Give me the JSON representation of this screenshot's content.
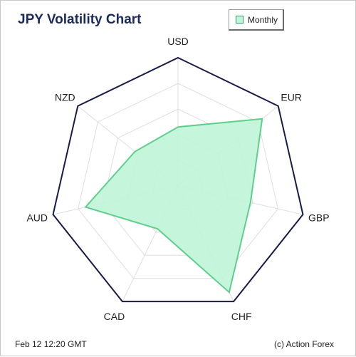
{
  "title": "JPY Volatility Chart",
  "legend": {
    "label": "Monthly",
    "color": "#5fcf8c",
    "fill": "#bff5d8"
  },
  "footer": {
    "timestamp": "Feb 12  12:20 GMT",
    "credit": "(c) Action Forex"
  },
  "chart_data": {
    "type": "radar",
    "categories": [
      "USD",
      "EUR",
      "GBP",
      "CHF",
      "CAD",
      "AUD",
      "NZD"
    ],
    "series": [
      {
        "name": "Monthly",
        "values": [
          0.46,
          0.84,
          0.58,
          0.92,
          0.37,
          0.74,
          0.43
        ]
      }
    ],
    "range": [
      0,
      1
    ],
    "rings": 5,
    "grid": true,
    "legend_position": "top-right",
    "colors": {
      "outline": "#1a1a4a",
      "grid": "#dedede",
      "series_line": "#5fcf8c",
      "series_fill": "#bff5d8"
    }
  }
}
